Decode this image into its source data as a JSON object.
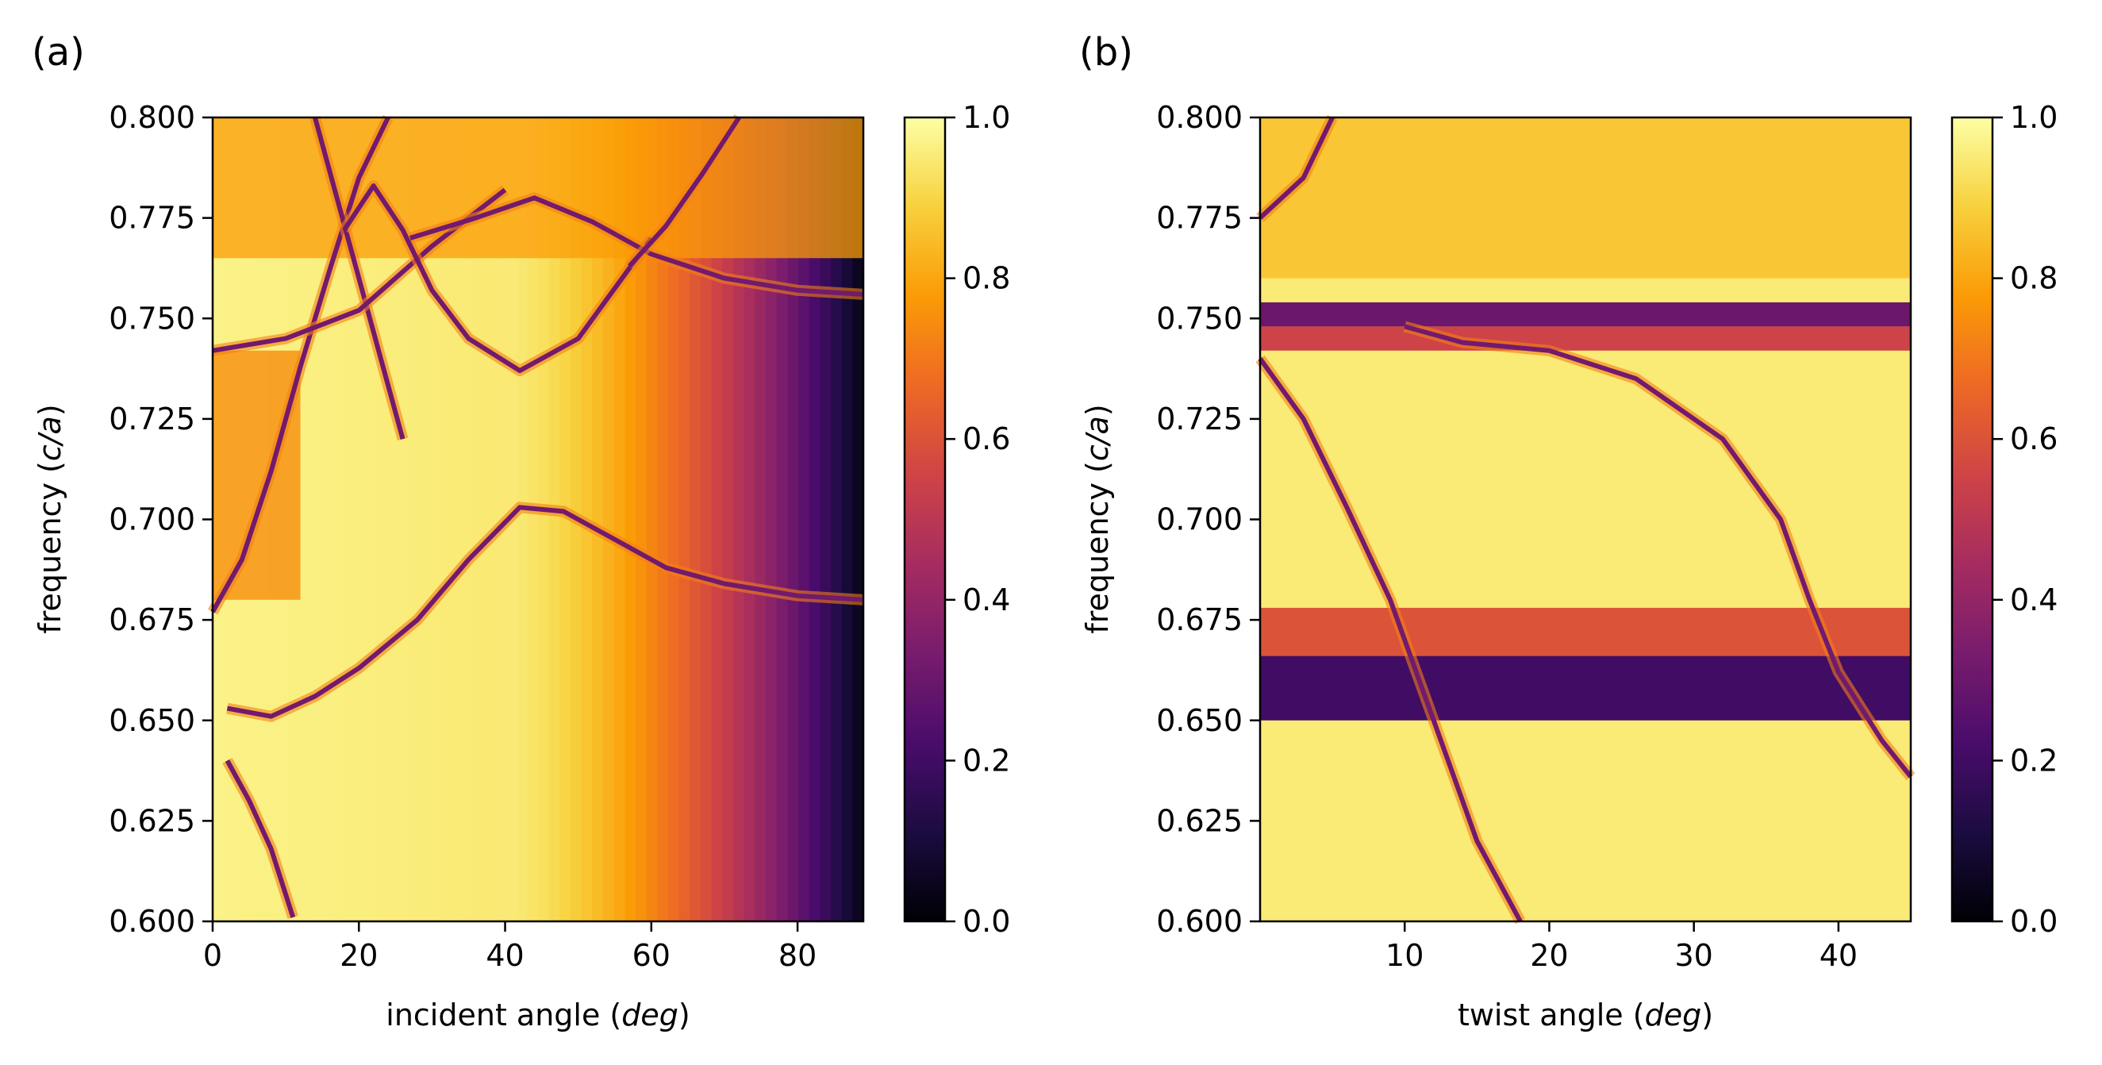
{
  "colors": {
    "colormap": "inferno",
    "stops": [
      "#000004",
      "#1b0c41",
      "#4a0c6b",
      "#781c6d",
      "#a52c60",
      "#cf4446",
      "#ed6925",
      "#fb9b06",
      "#f7d13d",
      "#fcffa4"
    ]
  },
  "chart_data": [
    {
      "type": "heatmap",
      "panel_label": "(a)",
      "xlabel_text": "incident angle (",
      "xlabel_unit": "deg",
      "xlabel_close": ")",
      "ylabel_text": "frequency (",
      "ylabel_unit": "c/a",
      "ylabel_close": ")",
      "xlim": [
        0,
        89
      ],
      "ylim": [
        0.6,
        0.8
      ],
      "xticks": [
        0,
        20,
        40,
        60,
        80
      ],
      "xtick_labels": [
        "0",
        "20",
        "40",
        "60",
        "80"
      ],
      "yticks": [
        0.6,
        0.625,
        0.65,
        0.675,
        0.7,
        0.725,
        0.75,
        0.775,
        0.8
      ],
      "ytick_labels": [
        "0.600",
        "0.625",
        "0.650",
        "0.675",
        "0.700",
        "0.725",
        "0.750",
        "0.775",
        "0.800"
      ],
      "colorbar": {
        "range": [
          0.0,
          1.0
        ],
        "ticks": [
          0.0,
          0.2,
          0.4,
          0.6,
          0.8,
          1.0
        ],
        "tick_labels": [
          "0.0",
          "0.2",
          "0.4",
          "0.6",
          "0.8",
          "1.0"
        ]
      },
      "resonance_curves": [
        [
          [
            0,
            0.677
          ],
          [
            4,
            0.69
          ],
          [
            8,
            0.712
          ],
          [
            12,
            0.738
          ],
          [
            16,
            0.762
          ],
          [
            20,
            0.785
          ],
          [
            24,
            0.8
          ]
        ],
        [
          [
            14,
            0.8
          ],
          [
            17,
            0.78
          ],
          [
            20,
            0.76
          ],
          [
            23,
            0.74
          ],
          [
            26,
            0.72
          ]
        ],
        [
          [
            0,
            0.742
          ],
          [
            10,
            0.745
          ],
          [
            20,
            0.752
          ],
          [
            30,
            0.768
          ],
          [
            40,
            0.782
          ]
        ],
        [
          [
            18,
            0.772
          ],
          [
            22,
            0.783
          ],
          [
            26,
            0.772
          ],
          [
            30,
            0.757
          ],
          [
            35,
            0.745
          ],
          [
            42,
            0.737
          ],
          [
            50,
            0.745
          ],
          [
            56,
            0.76
          ],
          [
            60,
            0.77
          ]
        ],
        [
          [
            27,
            0.77
          ],
          [
            36,
            0.775
          ],
          [
            44,
            0.78
          ],
          [
            52,
            0.774
          ],
          [
            60,
            0.766
          ],
          [
            70,
            0.76
          ],
          [
            80,
            0.757
          ],
          [
            89,
            0.756
          ]
        ],
        [
          [
            57,
            0.763
          ],
          [
            62,
            0.773
          ],
          [
            67,
            0.786
          ],
          [
            72,
            0.8
          ]
        ],
        [
          [
            2,
            0.653
          ],
          [
            8,
            0.651
          ],
          [
            14,
            0.656
          ],
          [
            20,
            0.663
          ],
          [
            28,
            0.675
          ],
          [
            35,
            0.69
          ],
          [
            42,
            0.703
          ],
          [
            48,
            0.702
          ],
          [
            55,
            0.695
          ],
          [
            62,
            0.688
          ],
          [
            70,
            0.684
          ],
          [
            80,
            0.681
          ],
          [
            89,
            0.68
          ]
        ],
        [
          [
            2,
            0.64
          ],
          [
            5,
            0.63
          ],
          [
            8,
            0.618
          ],
          [
            11,
            0.601
          ]
        ]
      ]
    },
    {
      "type": "heatmap",
      "panel_label": "(b)",
      "xlabel_text": "twist angle (",
      "xlabel_unit": "deg",
      "xlabel_close": ")",
      "ylabel_text": "frequency (",
      "ylabel_unit": "c/a",
      "ylabel_close": ")",
      "xlim": [
        0,
        45
      ],
      "ylim": [
        0.6,
        0.8
      ],
      "xticks": [
        10,
        20,
        30,
        40
      ],
      "xtick_labels": [
        "10",
        "20",
        "30",
        "40"
      ],
      "yticks": [
        0.6,
        0.625,
        0.65,
        0.675,
        0.7,
        0.725,
        0.75,
        0.775,
        0.8
      ],
      "ytick_labels": [
        "0.600",
        "0.625",
        "0.650",
        "0.675",
        "0.700",
        "0.725",
        "0.750",
        "0.775",
        "0.800"
      ],
      "colorbar": {
        "range": [
          0.0,
          1.0
        ],
        "ticks": [
          0.0,
          0.2,
          0.4,
          0.6,
          0.8,
          1.0
        ],
        "tick_labels": [
          "0.0",
          "0.2",
          "0.4",
          "0.6",
          "0.8",
          "1.0"
        ]
      },
      "horizontal_bands": [
        {
          "center": 0.751,
          "width": 0.003,
          "value": 0.3
        },
        {
          "center": 0.745,
          "width": 0.003,
          "value": 0.55
        },
        {
          "center": 0.662,
          "width": 0.012,
          "value": 0.2
        },
        {
          "center": 0.672,
          "width": 0.006,
          "value": 0.6
        }
      ],
      "resonance_curves": [
        [
          [
            0,
            0.74
          ],
          [
            3,
            0.725
          ],
          [
            6,
            0.703
          ],
          [
            9,
            0.68
          ],
          [
            12,
            0.65
          ],
          [
            15,
            0.62
          ],
          [
            18,
            0.6
          ]
        ],
        [
          [
            0,
            0.775
          ],
          [
            3,
            0.785
          ],
          [
            5,
            0.8
          ]
        ],
        [
          [
            10,
            0.748
          ],
          [
            14,
            0.744
          ],
          [
            20,
            0.742
          ],
          [
            26,
            0.735
          ],
          [
            32,
            0.72
          ],
          [
            36,
            0.7
          ],
          [
            38,
            0.68
          ],
          [
            40,
            0.662
          ],
          [
            43,
            0.645
          ],
          [
            45,
            0.636
          ]
        ]
      ]
    }
  ]
}
